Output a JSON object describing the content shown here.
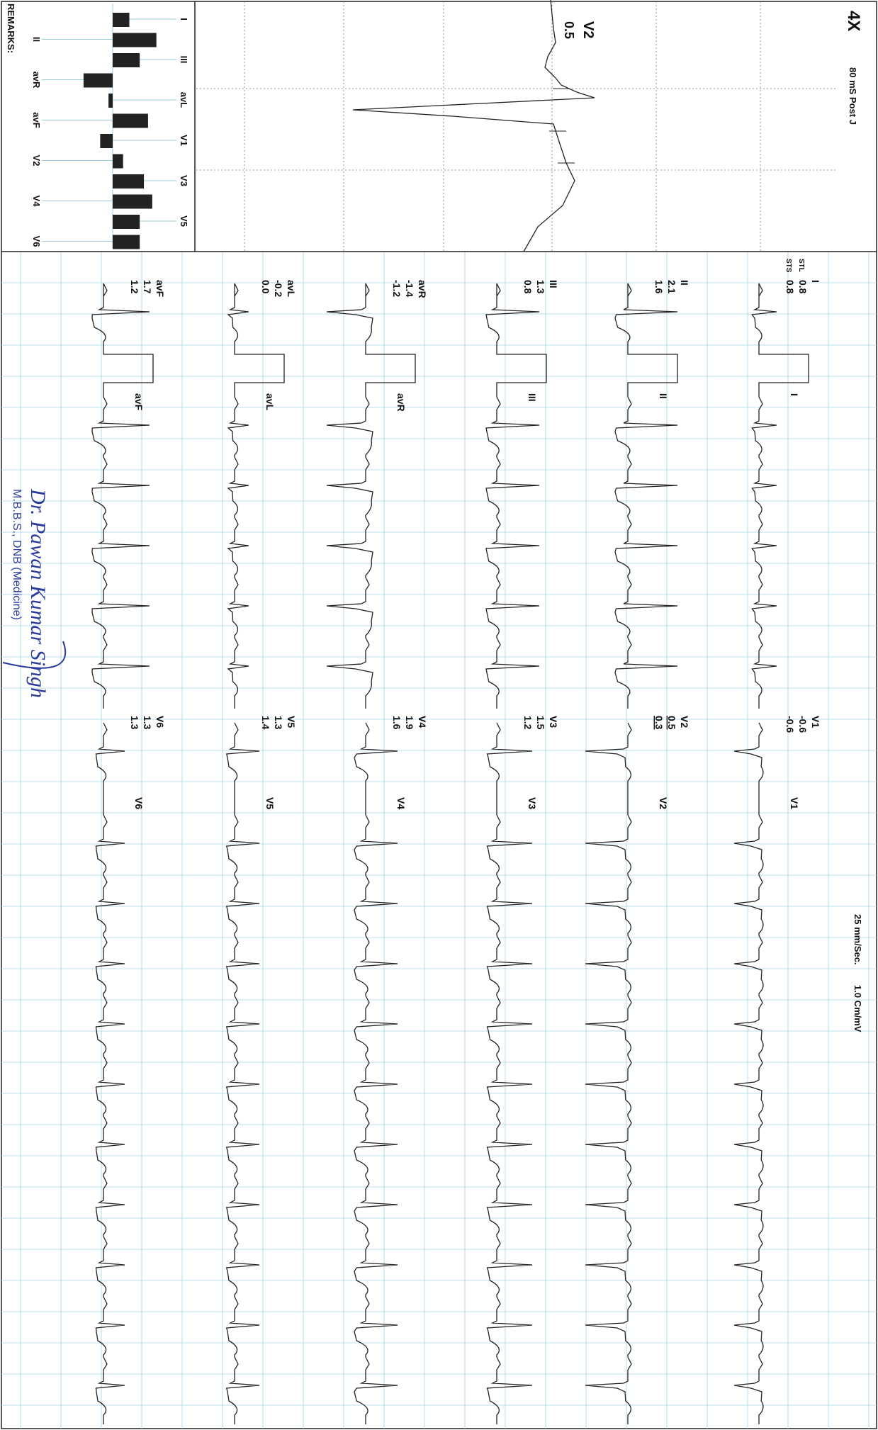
{
  "header": {
    "title": "4X",
    "subtitle": "80 mS Post J",
    "speed": "25 mm/Sec.",
    "gain": "1.0 Cm/mV"
  },
  "zoom": {
    "lead": "V2",
    "value": "0.5"
  },
  "row_labels": {
    "stl": "STL",
    "sts": "STS"
  },
  "leads": [
    {
      "name": "I",
      "stl": "0.8",
      "sts": "0.8"
    },
    {
      "name": "II",
      "stl": "2.1",
      "sts": "1.6"
    },
    {
      "name": "III",
      "stl": "1.3",
      "sts": "0.8"
    },
    {
      "name": "avR",
      "stl": "-1.4",
      "sts": "-1.2"
    },
    {
      "name": "avL",
      "stl": "-0.2",
      "sts": "0.0"
    },
    {
      "name": "avF",
      "stl": "1.7",
      "sts": "1.2"
    },
    {
      "name": "V1",
      "stl": "-0.6",
      "sts": "-0.6"
    },
    {
      "name": "V2",
      "stl": "0.5",
      "sts": "0.3"
    },
    {
      "name": "V3",
      "stl": "1.5",
      "sts": "1.2"
    },
    {
      "name": "V4",
      "stl": "1.9",
      "sts": "1.6"
    },
    {
      "name": "V5",
      "stl": "1.3",
      "sts": "1.4"
    },
    {
      "name": "V6",
      "stl": "1.3",
      "sts": "1.3"
    }
  ],
  "remarks": "REMARKS:",
  "signature": {
    "name": "Dr. Pawan Kumar Singh",
    "degree": "M.B.B.S., DNB (Medicine)"
  }
}
